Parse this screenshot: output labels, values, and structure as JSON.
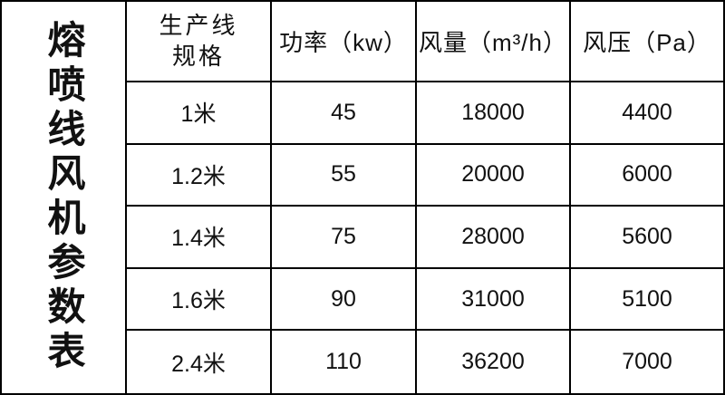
{
  "chart_data": {
    "type": "table",
    "title": "熔喷线风机参数表",
    "columns": [
      "生产线规格",
      "功率（kw）",
      "风量（m³/h）",
      "风压（Pa）"
    ],
    "rows": [
      [
        "1米",
        45,
        18000,
        4400
      ],
      [
        "1.2米",
        55,
        20000,
        6000
      ],
      [
        "1.4米",
        75,
        28000,
        5600
      ],
      [
        "1.6米",
        90,
        31000,
        5100
      ],
      [
        "2.4米",
        110,
        36200,
        7000
      ]
    ]
  },
  "display": {
    "spec_header_line1": "生产线",
    "spec_header_line2": "规格"
  },
  "colors": {
    "border": "#000000",
    "background": "#ffffff",
    "text": "#111111"
  }
}
